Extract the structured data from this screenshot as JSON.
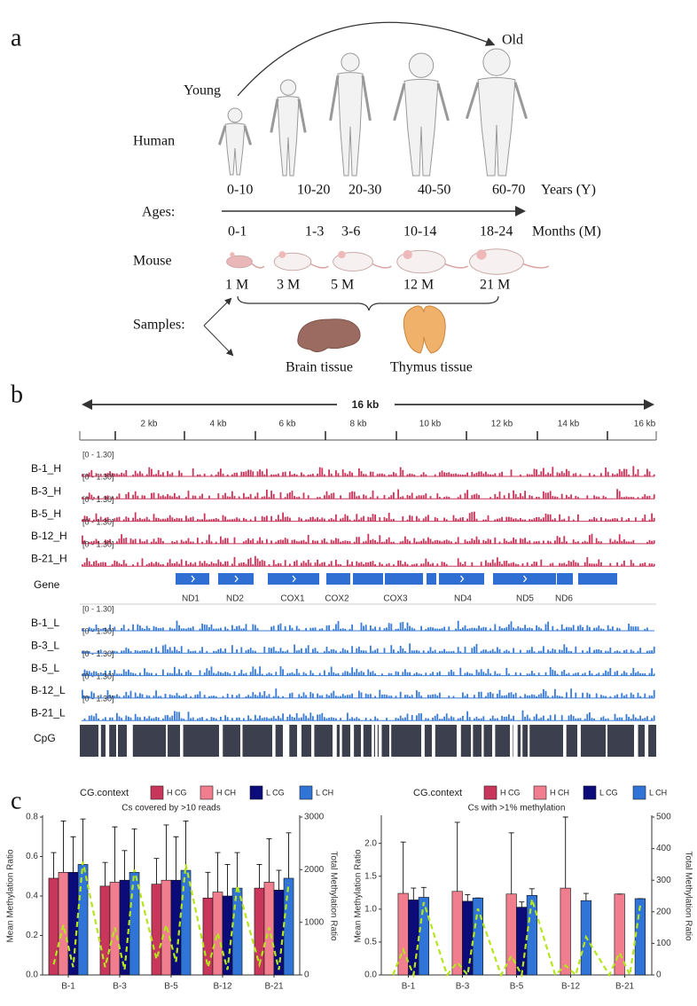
{
  "panel_a": {
    "label": "a",
    "young": "Young",
    "old": "Old",
    "human": "Human",
    "ages": "Ages:",
    "mouse": "Mouse",
    "samples": "Samples:",
    "years": [
      "0-10",
      "10-20",
      "20-30",
      "40-50",
      "60-70"
    ],
    "years_unit": "Years (Y)",
    "months": [
      "0-1",
      "1-3",
      "3-6",
      "10-14",
      "18-24"
    ],
    "months_unit": "Months (M)",
    "mouse_ages": [
      "1 M",
      "3 M",
      "5 M",
      "12 M",
      "21 M"
    ],
    "tissues": [
      "Brain tissue",
      "Thymus tissue"
    ]
  },
  "panel_b": {
    "label": "b",
    "span": "16 kb",
    "ruler": [
      "2 kb",
      "4 kb",
      "6 kb",
      "8 kb",
      "10 kb",
      "12 kb",
      "14 kb",
      "16 kb"
    ],
    "range": "[0 - 1.30]",
    "tracks_h": [
      "B-1_H",
      "B-3_H",
      "B-5_H",
      "B-12_H",
      "B-21_H"
    ],
    "gene_label": "Gene",
    "genes": [
      "ND1",
      "ND2",
      "COX1",
      "COX2",
      "COX3",
      "ND4",
      "ND5",
      "ND6"
    ],
    "tracks_l": [
      "B-1_L",
      "B-3_L",
      "B-5_L",
      "B-12_L",
      "B-21_L"
    ],
    "cpg": "CpG"
  },
  "panel_c": {
    "label": "c"
  },
  "chart_data": [
    {
      "type": "bar",
      "title": "Cs covered by >10 reads",
      "legend_title": "CG.context",
      "y_label": "Mean Methylation Ratio",
      "y2_label": "Total Methylation Ratio",
      "categories": [
        "B-1",
        "B-3",
        "B-5",
        "B-12",
        "B-21"
      ],
      "series": [
        {
          "name": "H CG",
          "color": "#c8375b",
          "values": [
            0.49,
            0.45,
            0.46,
            0.39,
            0.44
          ],
          "errors": [
            0.13,
            0.12,
            0.13,
            0.13,
            0.12
          ]
        },
        {
          "name": "H CH",
          "color": "#f07e8e",
          "values": [
            0.52,
            0.47,
            0.48,
            0.42,
            0.47
          ],
          "errors": [
            0.26,
            0.28,
            0.28,
            0.2,
            0.22
          ]
        },
        {
          "name": "L CG",
          "color": "#0b0b7a",
          "values": [
            0.52,
            0.48,
            0.48,
            0.4,
            0.43
          ],
          "errors": [
            0.18,
            0.15,
            0.22,
            0.16,
            0.1
          ]
        },
        {
          "name": "L CH",
          "color": "#2f74d6",
          "values": [
            0.56,
            0.52,
            0.53,
            0.44,
            0.49
          ],
          "errors": [
            0.23,
            0.22,
            0.25,
            0.18,
            0.23
          ]
        }
      ],
      "line": {
        "axis": "y2",
        "color": "#b5e61d",
        "values": [
          200,
          950,
          150,
          2150,
          150,
          900,
          100,
          2000,
          300,
          950,
          250,
          2100,
          150,
          800,
          100,
          1700,
          200,
          900,
          100,
          1750
        ]
      },
      "ylim": [
        0,
        0.8
      ],
      "yticks": [
        {
          "value": 0,
          "label": "0.0"
        },
        0.2,
        0.4,
        0.6,
        0.8
      ],
      "y2lim": [
        0,
        3000
      ],
      "y2ticks": [
        0,
        1000,
        2000,
        3000
      ]
    },
    {
      "type": "bar",
      "title": "Cs with >1% methylation",
      "legend_title": "CG.context",
      "y_label": "Mean Methylation Ratio",
      "y2_label": "Total Methylation Ratio",
      "categories": [
        "B-1",
        "B-3",
        "B-5",
        "B-12",
        "B-21"
      ],
      "series": [
        {
          "name": "H CG",
          "color": "#c8375b",
          "values": [
            null,
            null,
            null,
            null,
            null
          ],
          "errors": [
            null,
            null,
            null,
            null,
            null
          ]
        },
        {
          "name": "H CH",
          "color": "#f07e8e",
          "values": [
            1.24,
            1.27,
            1.23,
            1.32,
            1.23
          ],
          "errors": [
            0.78,
            1.05,
            0.93,
            1.08,
            0.0
          ]
        },
        {
          "name": "L CG",
          "color": "#0b0b7a",
          "values": [
            1.14,
            1.12,
            1.03,
            null,
            null
          ],
          "errors": [
            0.18,
            0.1,
            0.08,
            null,
            null
          ]
        },
        {
          "name": "L CH",
          "color": "#2f74d6",
          "values": [
            1.18,
            1.17,
            1.21,
            1.13,
            1.16
          ],
          "errors": [
            0.15,
            0.0,
            0.1,
            0.11,
            0.0
          ]
        }
      ],
      "line": {
        "axis": "y2",
        "color": "#b5e61d",
        "values": [
          0,
          80,
          0,
          230,
          0,
          40,
          0,
          210,
          0,
          60,
          0,
          240,
          0,
          30,
          0,
          120,
          0,
          70,
          0,
          220
        ]
      },
      "ylim": [
        0,
        2.4
      ],
      "yticks": [
        {
          "value": 0,
          "label": "0.0"
        },
        0.5,
        {
          "value": 1,
          "label": "1.0"
        },
        1.5,
        {
          "value": 2,
          "label": "2.0"
        }
      ],
      "y2lim": [
        0,
        500
      ],
      "y2ticks": [
        0,
        100,
        200,
        300,
        400,
        500
      ]
    }
  ]
}
